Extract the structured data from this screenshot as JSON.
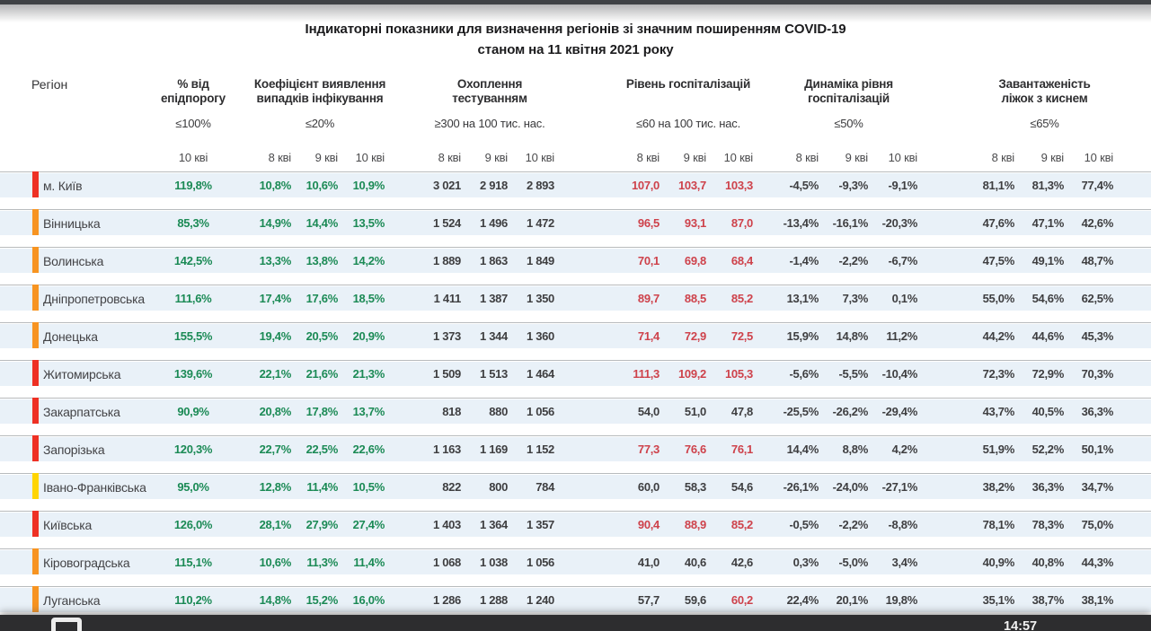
{
  "title": {
    "line1": "Індикаторні показники для визначення регіонів зі значним поширенням COVID-19",
    "line2": "станом на 11 квітня 2021 року"
  },
  "columns": {
    "region_header": "Регіон",
    "groups": [
      {
        "id": "epid",
        "title": "% від",
        "title2": "епідпорогу",
        "threshold": "≤100%",
        "dates": [
          "10 кві"
        ]
      },
      {
        "id": "coef",
        "title": "Коефіцієнт виявлення",
        "title2": "випадків інфікування",
        "threshold": "≤20%",
        "dates": [
          "8 кві",
          "9 кві",
          "10 кві"
        ]
      },
      {
        "id": "test",
        "title": "Охоплення тестуванням",
        "title2": "",
        "threshold": "≥300 на 100 тис. нас.",
        "dates": [
          "8 кві",
          "9 кві",
          "10 кві"
        ]
      },
      {
        "id": "hosp",
        "title": "Рівень госпіталізацій",
        "title2": "",
        "threshold": "≤60 на 100 тис. нас.",
        "dates": [
          "8 кві",
          "9 кві",
          "10 кві"
        ]
      },
      {
        "id": "dyn",
        "title": "Динаміка рівня",
        "title2": "госпіталізацій",
        "threshold": "≤50%",
        "dates": [
          "8 кві",
          "9 кві",
          "10 кві"
        ]
      },
      {
        "id": "beds",
        "title": "Завантаженість",
        "title2": "ліжок з киснем",
        "threshold": "≤65%",
        "dates": [
          "8 кві",
          "9 кві",
          "10 кві"
        ]
      }
    ]
  },
  "rows": [
    {
      "region": "м. Київ",
      "marker": "red",
      "epid": "119,8%",
      "coef": [
        "10,8%",
        "10,6%",
        "10,9%"
      ],
      "test": [
        "3 021",
        "2 918",
        "2 893"
      ],
      "hosp": [
        {
          "v": "107,0",
          "c": "red"
        },
        {
          "v": "103,7",
          "c": "red"
        },
        {
          "v": "103,3",
          "c": "red"
        }
      ],
      "dyn": [
        "-4,5%",
        "-9,3%",
        "-9,1%"
      ],
      "beds": [
        "81,1%",
        "81,3%",
        "77,4%"
      ]
    },
    {
      "region": "Вінницька",
      "marker": "orange",
      "epid": "85,3%",
      "coef": [
        "14,9%",
        "14,4%",
        "13,5%"
      ],
      "test": [
        "1 524",
        "1 496",
        "1 472"
      ],
      "hosp": [
        {
          "v": "96,5",
          "c": "red"
        },
        {
          "v": "93,1",
          "c": "red"
        },
        {
          "v": "87,0",
          "c": "red"
        }
      ],
      "dyn": [
        "-13,4%",
        "-16,1%",
        "-20,3%"
      ],
      "beds": [
        "47,6%",
        "47,1%",
        "42,6%"
      ]
    },
    {
      "region": "Волинська",
      "marker": "orange",
      "epid": "142,5%",
      "coef": [
        "13,3%",
        "13,8%",
        "14,2%"
      ],
      "test": [
        "1 889",
        "1 863",
        "1 849"
      ],
      "hosp": [
        {
          "v": "70,1",
          "c": "red"
        },
        {
          "v": "69,8",
          "c": "red"
        },
        {
          "v": "68,4",
          "c": "red"
        }
      ],
      "dyn": [
        "-1,4%",
        "-2,2%",
        "-6,7%"
      ],
      "beds": [
        "47,5%",
        "49,1%",
        "48,7%"
      ]
    },
    {
      "region": "Дніпропетровська",
      "marker": "orange",
      "epid": "111,6%",
      "coef": [
        "17,4%",
        "17,6%",
        "18,5%"
      ],
      "test": [
        "1 411",
        "1 387",
        "1 350"
      ],
      "hosp": [
        {
          "v": "89,7",
          "c": "red"
        },
        {
          "v": "88,5",
          "c": "red"
        },
        {
          "v": "85,2",
          "c": "red"
        }
      ],
      "dyn": [
        "13,1%",
        "7,3%",
        "0,1%"
      ],
      "beds": [
        "55,0%",
        "54,6%",
        "62,5%"
      ]
    },
    {
      "region": "Донецька",
      "marker": "orange",
      "epid": "155,5%",
      "coef": [
        "19,4%",
        "20,5%",
        "20,9%"
      ],
      "test": [
        "1 373",
        "1 344",
        "1 360"
      ],
      "hosp": [
        {
          "v": "71,4",
          "c": "red"
        },
        {
          "v": "72,9",
          "c": "red"
        },
        {
          "v": "72,5",
          "c": "red"
        }
      ],
      "dyn": [
        "15,9%",
        "14,8%",
        "11,2%"
      ],
      "beds": [
        "44,2%",
        "44,6%",
        "45,3%"
      ]
    },
    {
      "region": "Житомирська",
      "marker": "red",
      "epid": "139,6%",
      "coef": [
        "22,1%",
        "21,6%",
        "21,3%"
      ],
      "test": [
        "1 509",
        "1 513",
        "1 464"
      ],
      "hosp": [
        {
          "v": "111,3",
          "c": "red"
        },
        {
          "v": "109,2",
          "c": "red"
        },
        {
          "v": "105,3",
          "c": "red"
        }
      ],
      "dyn": [
        "-5,6%",
        "-5,5%",
        "-10,4%"
      ],
      "beds": [
        "72,3%",
        "72,9%",
        "70,3%"
      ]
    },
    {
      "region": "Закарпатська",
      "marker": "red",
      "epid": "90,9%",
      "coef": [
        "20,8%",
        "17,8%",
        "13,7%"
      ],
      "test": [
        "818",
        "880",
        "1 056"
      ],
      "hosp": [
        {
          "v": "54,0",
          "c": "dark"
        },
        {
          "v": "51,0",
          "c": "dark"
        },
        {
          "v": "47,8",
          "c": "dark"
        }
      ],
      "dyn": [
        "-25,5%",
        "-26,2%",
        "-29,4%"
      ],
      "beds": [
        "43,7%",
        "40,5%",
        "36,3%"
      ]
    },
    {
      "region": "Запорізька",
      "marker": "red",
      "epid": "120,3%",
      "coef": [
        "22,7%",
        "22,5%",
        "22,6%"
      ],
      "test": [
        "1 163",
        "1 169",
        "1 152"
      ],
      "hosp": [
        {
          "v": "77,3",
          "c": "red"
        },
        {
          "v": "76,6",
          "c": "red"
        },
        {
          "v": "76,1",
          "c": "red"
        }
      ],
      "dyn": [
        "14,4%",
        "8,8%",
        "4,2%"
      ],
      "beds": [
        "51,9%",
        "52,2%",
        "50,1%"
      ]
    },
    {
      "region": "Івано-Франківська",
      "marker": "yellow",
      "epid": "95,0%",
      "coef": [
        "12,8%",
        "11,4%",
        "10,5%"
      ],
      "test": [
        "822",
        "800",
        "784"
      ],
      "hosp": [
        {
          "v": "60,0",
          "c": "dark"
        },
        {
          "v": "58,3",
          "c": "dark"
        },
        {
          "v": "54,6",
          "c": "dark"
        }
      ],
      "dyn": [
        "-26,1%",
        "-24,0%",
        "-27,1%"
      ],
      "beds": [
        "38,2%",
        "36,3%",
        "34,7%"
      ]
    },
    {
      "region": "Київська",
      "marker": "red",
      "epid": "126,0%",
      "coef": [
        "28,1%",
        "27,9%",
        "27,4%"
      ],
      "test": [
        "1 403",
        "1 364",
        "1 357"
      ],
      "hosp": [
        {
          "v": "90,4",
          "c": "red"
        },
        {
          "v": "88,9",
          "c": "red"
        },
        {
          "v": "85,2",
          "c": "red"
        }
      ],
      "dyn": [
        "-0,5%",
        "-2,2%",
        "-8,8%"
      ],
      "beds": [
        "78,1%",
        "78,3%",
        "75,0%"
      ]
    },
    {
      "region": "Кіровоградська",
      "marker": "orange",
      "epid": "115,1%",
      "coef": [
        "10,6%",
        "11,3%",
        "11,4%"
      ],
      "test": [
        "1 068",
        "1 038",
        "1 056"
      ],
      "hosp": [
        {
          "v": "41,0",
          "c": "dark"
        },
        {
          "v": "40,6",
          "c": "dark"
        },
        {
          "v": "42,6",
          "c": "dark"
        }
      ],
      "dyn": [
        "0,3%",
        "-5,0%",
        "3,4%"
      ],
      "beds": [
        "40,9%",
        "40,8%",
        "44,3%"
      ]
    },
    {
      "region": "Луганська",
      "marker": "orange",
      "epid": "110,2%",
      "coef": [
        "14,8%",
        "15,2%",
        "16,0%"
      ],
      "test": [
        "1 286",
        "1 288",
        "1 240"
      ],
      "hosp": [
        {
          "v": "57,7",
          "c": "dark"
        },
        {
          "v": "59,6",
          "c": "dark"
        },
        {
          "v": "60,2",
          "c": "red"
        }
      ],
      "dyn": [
        "22,4%",
        "20,1%",
        "19,8%"
      ],
      "beds": [
        "35,1%",
        "38,7%",
        "38,1%"
      ]
    }
  ],
  "statusbar": {
    "time": "14:57"
  },
  "colors": {
    "green": "#1b8a55",
    "red": "#ce424b",
    "dark": "#3e3e40",
    "marker_red": "#ee3124",
    "marker_orange": "#f79421",
    "marker_yellow": "#ffd502",
    "band": "#e9f1f8",
    "line": "#b8bbbd"
  }
}
